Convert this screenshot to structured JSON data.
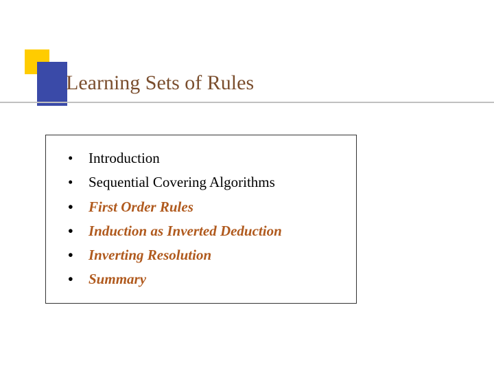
{
  "slide": {
    "title": "Learning Sets of Rules",
    "items": [
      {
        "text": "Introduction",
        "style": "normal"
      },
      {
        "text": "Sequential Covering Algorithms",
        "style": "normal"
      },
      {
        "text": "First Order Rules",
        "style": "highlighted"
      },
      {
        "text": "Induction as Inverted Deduction",
        "style": "highlighted"
      },
      {
        "text": "Inverting Resolution",
        "style": "highlighted"
      },
      {
        "text": "Summary",
        "style": "highlighted"
      }
    ],
    "colors": {
      "title_color": "#7a4e2e",
      "highlight_color": "#b05a1e",
      "normal_color": "#000000",
      "yellow_accent": "#ffcc00",
      "blue_accent": "#3a4aa8",
      "divider_color": "#c0c0c0",
      "border_color": "#333333",
      "background": "#ffffff"
    },
    "typography": {
      "title_fontsize": 30,
      "item_fontsize": 21,
      "font_family": "Times New Roman"
    }
  }
}
